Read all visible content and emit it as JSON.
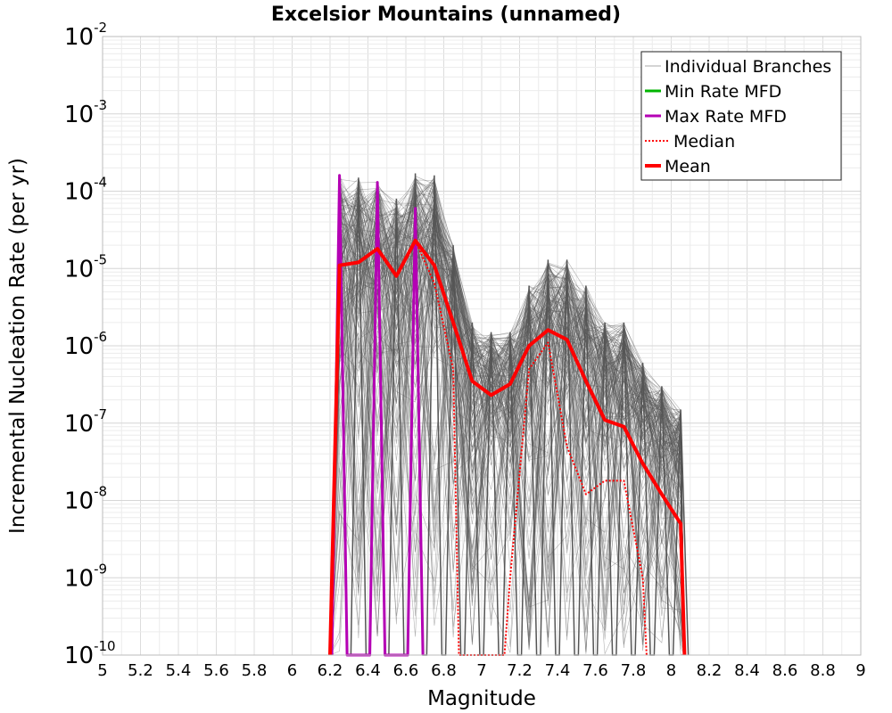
{
  "chart_data": {
    "type": "line",
    "title": "Excelsior Mountains (unnamed)",
    "xlabel": "Magnitude",
    "ylabel": "Incremental Nucleation Rate (per yr)",
    "xlim": [
      5,
      9
    ],
    "ylim": [
      1e-10,
      0.01
    ],
    "y_scale": "log",
    "grid": true,
    "legend_position": "top-right",
    "x_ticks": [
      "5",
      "5.2",
      "5.4",
      "5.6",
      "5.8",
      "6",
      "6.2",
      "6.4",
      "6.6",
      "6.8",
      "7",
      "7.2",
      "7.4",
      "7.6",
      "7.8",
      "8",
      "8.2",
      "8.4",
      "8.6",
      "8.8",
      "9"
    ],
    "y_ticks": [
      {
        "base": "10",
        "exp": "-10",
        "value": 1e-10
      },
      {
        "base": "10",
        "exp": "-9",
        "value": 1e-09
      },
      {
        "base": "10",
        "exp": "-8",
        "value": 1e-08
      },
      {
        "base": "10",
        "exp": "-7",
        "value": 1e-07
      },
      {
        "base": "10",
        "exp": "-6",
        "value": 1e-06
      },
      {
        "base": "10",
        "exp": "-5",
        "value": 1e-05
      },
      {
        "base": "10",
        "exp": "-4",
        "value": 0.0001
      },
      {
        "base": "10",
        "exp": "-3",
        "value": 0.001
      },
      {
        "base": "10",
        "exp": "-2",
        "value": 0.01
      }
    ],
    "series": [
      {
        "name": "Individual Branches",
        "color": "#555555",
        "style": "thin",
        "x": [
          6.25,
          6.35,
          6.45,
          6.55,
          6.65,
          6.75,
          6.85,
          6.95,
          7.05,
          7.15,
          7.25,
          7.35,
          7.45,
          7.55,
          7.65,
          7.75,
          7.85,
          7.95,
          8.05
        ],
        "y_upper": [
          0.00016,
          0.00015,
          0.00013,
          8e-05,
          0.00017,
          0.00016,
          2e-05,
          2e-06,
          1.5e-06,
          1.5e-06,
          6e-06,
          1.3e-05,
          1.3e-05,
          6e-06,
          2e-06,
          2e-06,
          6e-07,
          3e-07,
          1.5e-07
        ],
        "y_lower": [
          1e-10,
          1e-10,
          1e-10,
          1e-10,
          1e-10,
          1e-10,
          1e-10,
          1e-10,
          1e-10,
          1e-10,
          1e-10,
          1e-10,
          1e-10,
          1e-10,
          1e-10,
          1e-10,
          1e-10,
          1e-10,
          1e-10
        ]
      },
      {
        "name": "Min Rate MFD",
        "color": "#00b400",
        "x": [],
        "y": []
      },
      {
        "name": "Max Rate MFD",
        "color": "#b400b4",
        "x": [
          6.21,
          6.25,
          6.29,
          6.41,
          6.45,
          6.49,
          6.61,
          6.65,
          6.69
        ],
        "y": [
          1e-10,
          0.00016,
          1e-10,
          1e-10,
          0.00013,
          1e-10,
          1e-10,
          6e-05,
          1e-10
        ]
      },
      {
        "name": "Median",
        "color": "#ff0000",
        "style": "dotted",
        "x": [
          6.2,
          6.25,
          6.35,
          6.45,
          6.55,
          6.65,
          6.75,
          6.85,
          6.88,
          7.12,
          7.15,
          7.25,
          7.35,
          7.45,
          7.55,
          7.65,
          7.75,
          7.85,
          7.87
        ],
        "y": [
          1e-10,
          1.1e-05,
          1.2e-05,
          1.8e-05,
          8e-06,
          2.3e-05,
          6.5e-06,
          5e-07,
          1e-10,
          1e-10,
          1e-09,
          5e-07,
          1.1e-06,
          5e-08,
          1.2e-08,
          1.8e-08,
          1.8e-08,
          1e-09,
          1e-10
        ]
      },
      {
        "name": "Mean",
        "color": "#ff0000",
        "style": "thick",
        "x": [
          6.2,
          6.25,
          6.35,
          6.45,
          6.55,
          6.65,
          6.75,
          6.85,
          6.95,
          7.05,
          7.15,
          7.25,
          7.35,
          7.45,
          7.55,
          7.65,
          7.75,
          7.85,
          7.95,
          8.05,
          8.07
        ],
        "y": [
          1e-10,
          1.1e-05,
          1.2e-05,
          1.8e-05,
          8e-06,
          2.3e-05,
          1.1e-05,
          2e-06,
          3.5e-07,
          2.3e-07,
          3.2e-07,
          1e-06,
          1.6e-06,
          1.2e-06,
          3.5e-07,
          1.1e-07,
          9e-08,
          3e-08,
          1.2e-08,
          5e-09,
          1e-10
        ]
      }
    ],
    "legend": [
      {
        "label": "Individual Branches",
        "color": "#aaaaaa",
        "style": "thin"
      },
      {
        "label": "Min Rate MFD",
        "color": "#00b400",
        "style": "solid"
      },
      {
        "label": "Max Rate MFD",
        "color": "#b400b4",
        "style": "solid"
      },
      {
        "label": "Median",
        "color": "#ff0000",
        "style": "dotted"
      },
      {
        "label": "Mean",
        "color": "#ff0000",
        "style": "thick"
      }
    ]
  }
}
